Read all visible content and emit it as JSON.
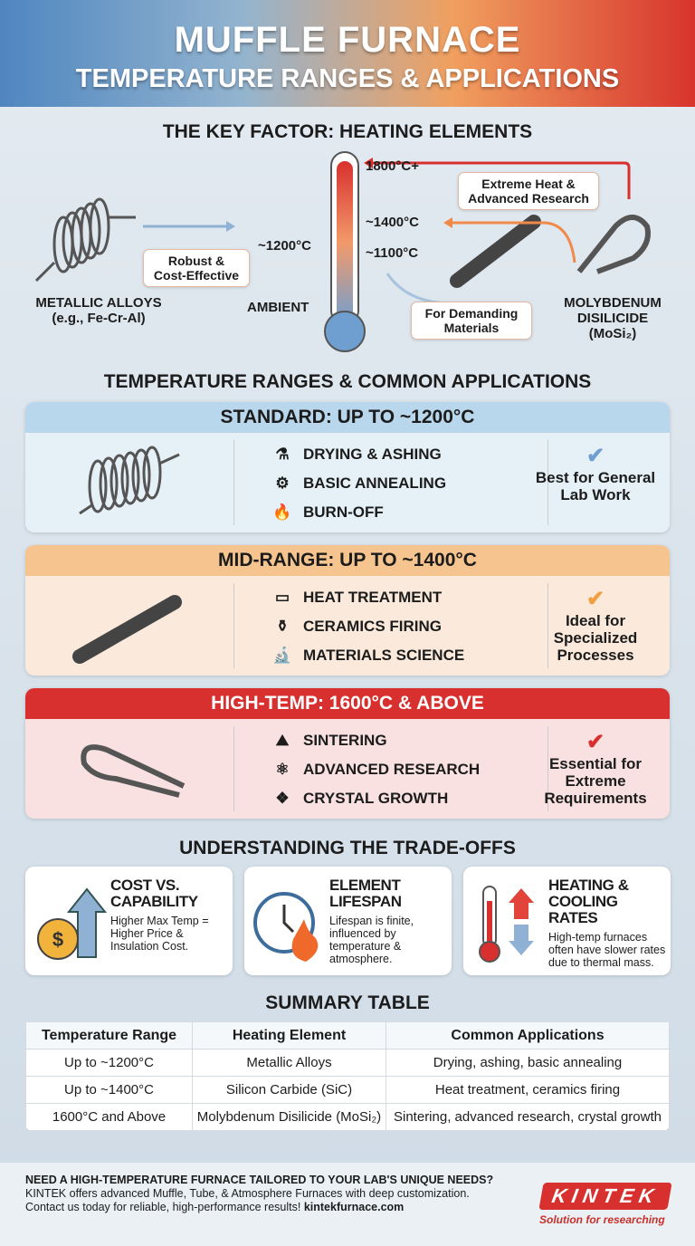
{
  "header": {
    "title": "MUFFLE FURNACE",
    "subtitle": "TEMPERATURE RANGES & APPLICATIONS"
  },
  "key_factor": {
    "title": "THE KEY FACTOR: HEATING ELEMENTS",
    "ticks": [
      "1800°C+",
      "~1400°C",
      "~1100°C",
      "~1200°C",
      "AMBIENT"
    ],
    "metallic_label": "METALLIC ALLOYS",
    "metallic_sub": "(e.g., Fe-Cr-Al)",
    "robust_bubble": "Robust & Cost-Effective",
    "extreme_bubble": "Extreme Heat & Advanced Research",
    "demanding_bubble": "For Demanding Materials",
    "moly_label": "MOLYBDENUM DISILICIDE",
    "moly_sub": "(MoSi₂)"
  },
  "ranges": {
    "title": "TEMPERATURE RANGES & COMMON APPLICATIONS",
    "cards": [
      {
        "title": "STANDARD: UP TO ~1200°C",
        "apps": [
          "DRYING & ASHING",
          "BASIC ANNEALING",
          "BURN-OFF"
        ],
        "note": "Best for General Lab Work",
        "color": "#b9d7ec"
      },
      {
        "title": "MID-RANGE: UP TO ~1400°C",
        "apps": [
          "HEAT TREATMENT",
          "CERAMICS FIRING",
          "MATERIALS SCIENCE"
        ],
        "note": "Ideal for Specialized Processes",
        "color": "#f6c58f"
      },
      {
        "title": "HIGH-TEMP: 1600°C & ABOVE",
        "apps": [
          "SINTERING",
          "ADVANCED RESEARCH",
          "CRYSTAL GROWTH"
        ],
        "note": "Essential for Extreme Requirements",
        "color": "#d8302e"
      }
    ]
  },
  "tradeoffs": {
    "title": "UNDERSTANDING THE TRADE-OFFS",
    "cards": [
      {
        "title": "COST VS. CAPABILITY",
        "text": "Higher Max Temp = Higher Price & Insulation Cost."
      },
      {
        "title": "ELEMENT LIFESPAN",
        "text": "Lifespan is finite, influenced by temperature & atmosphere."
      },
      {
        "title": "HEATING & COOLING RATES",
        "text": "High-temp furnaces often have slower rates due to thermal mass."
      }
    ]
  },
  "summary": {
    "title": "SUMMARY TABLE",
    "columns": [
      "Temperature Range",
      "Heating Element",
      "Common Applications"
    ],
    "rows": [
      [
        "Up to ~1200°C",
        "Metallic Alloys",
        "Drying, ashing, basic annealing"
      ],
      [
        "Up to ~1400°C",
        "Silicon Carbide (SiC)",
        "Heat treatment, ceramics firing"
      ],
      [
        "1600°C and Above",
        "Molybdenum Disilicide (MoSi₂)",
        "Sintering, advanced research, crystal growth"
      ]
    ]
  },
  "footer": {
    "headline": "NEED A HIGH-TEMPERATURE FURNACE TAILORED TO YOUR LAB'S UNIQUE NEEDS?",
    "line1": "KINTEK offers advanced Muffle, Tube, & Atmosphere Furnaces with deep customization.",
    "line2": "Contact us today for reliable, high-performance results!",
    "link": "kintekfurnace.com",
    "logo": "KINTEK",
    "tagline": "Solution for researching"
  }
}
